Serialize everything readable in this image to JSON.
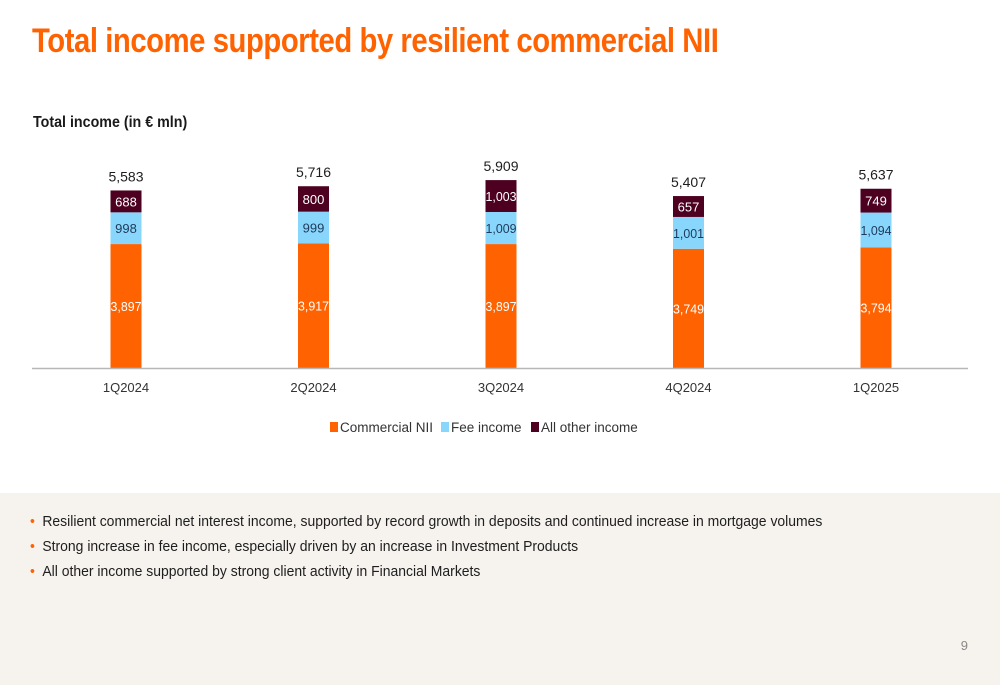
{
  "header": {
    "title": "Total income supported by resilient commercial NII"
  },
  "chart_data": {
    "type": "bar",
    "stacked": true,
    "title": "Total income (in € mln)",
    "categories": [
      "1Q2024",
      "2Q2024",
      "3Q2024",
      "4Q2024",
      "1Q2025"
    ],
    "series": [
      {
        "name": "Commercial NII",
        "color": "#ff6200",
        "values": [
          3897,
          3917,
          3897,
          3749,
          3794
        ],
        "labels": [
          "3,897",
          "3,917",
          "3,897",
          "3,749",
          "3,794"
        ]
      },
      {
        "name": "Fee income",
        "color": "#89d6fd",
        "values": [
          998,
          999,
          1009,
          1001,
          1094
        ],
        "labels": [
          "998",
          "999",
          "1,009",
          "1,001",
          "1,094"
        ]
      },
      {
        "name": "All other income",
        "color": "#4d0020",
        "values": [
          688,
          800,
          1003,
          657,
          749
        ],
        "labels": [
          "688",
          "800",
          "1,003",
          "657",
          "749"
        ]
      }
    ],
    "totals": [
      5583,
      5716,
      5909,
      5407,
      5637
    ],
    "total_labels": [
      "5,583",
      "5,716",
      "5,909",
      "5,407",
      "5,637"
    ],
    "legend_position": "bottom",
    "grid": false
  },
  "notes": {
    "bullets": [
      "Resilient commercial net interest income, supported by record growth in deposits and continued increase in mortgage volumes",
      "Strong increase in fee income, especially driven by an increase in Investment Products",
      "All other income supported by strong client activity in Financial Markets"
    ],
    "bullet_symbol": "•"
  },
  "footer": {
    "page_number": "9"
  }
}
